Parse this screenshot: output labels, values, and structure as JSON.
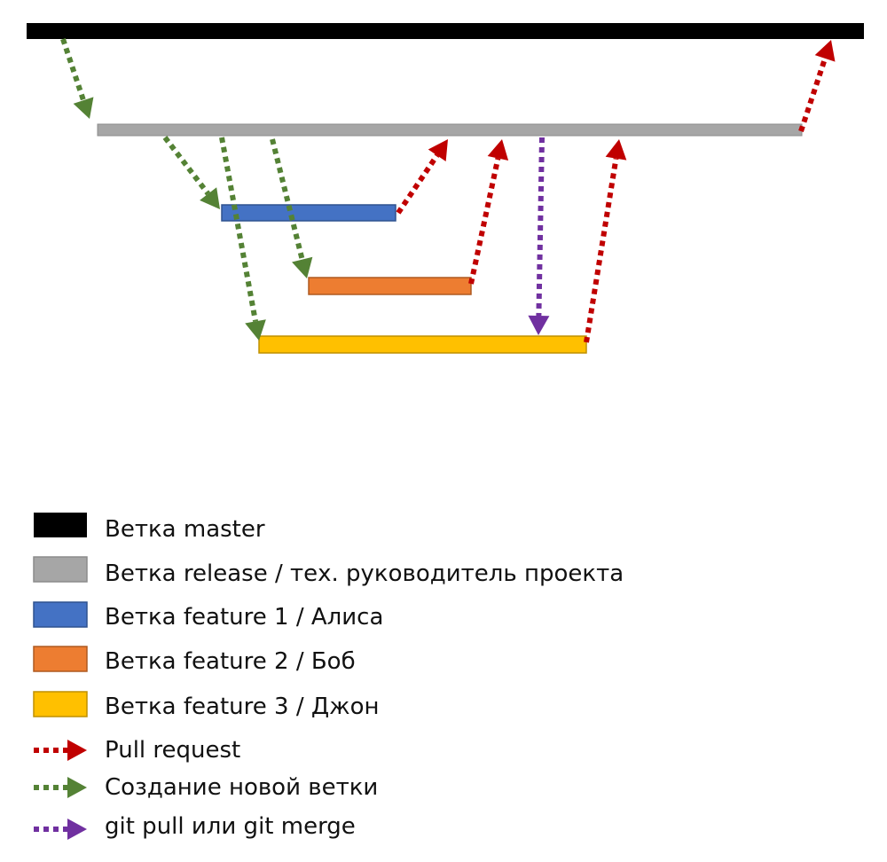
{
  "colors": {
    "master": "#000000",
    "release": "#a6a6a6",
    "release_border": "#8c8c8c",
    "feature1": "#4472c4",
    "feature1_border": "#2f528f",
    "feature2": "#ed7d31",
    "feature2_border": "#ae5a21",
    "feature3": "#ffc000",
    "feature3_border": "#bf9000",
    "pull_request": "#c00000",
    "new_branch": "#548235",
    "git_pull": "#7030a0"
  },
  "legend": {
    "master": "Ветка master",
    "release": "Ветка release / тех. руководитель проекта",
    "feature1": "Ветка feature 1 / Алиса",
    "feature2": "Ветка feature 2 / Боб",
    "feature3": "Ветка feature 3 / Джон",
    "pull_request": "Pull request",
    "new_branch": "Создание новой ветки",
    "git_pull": "git pull или git merge"
  }
}
